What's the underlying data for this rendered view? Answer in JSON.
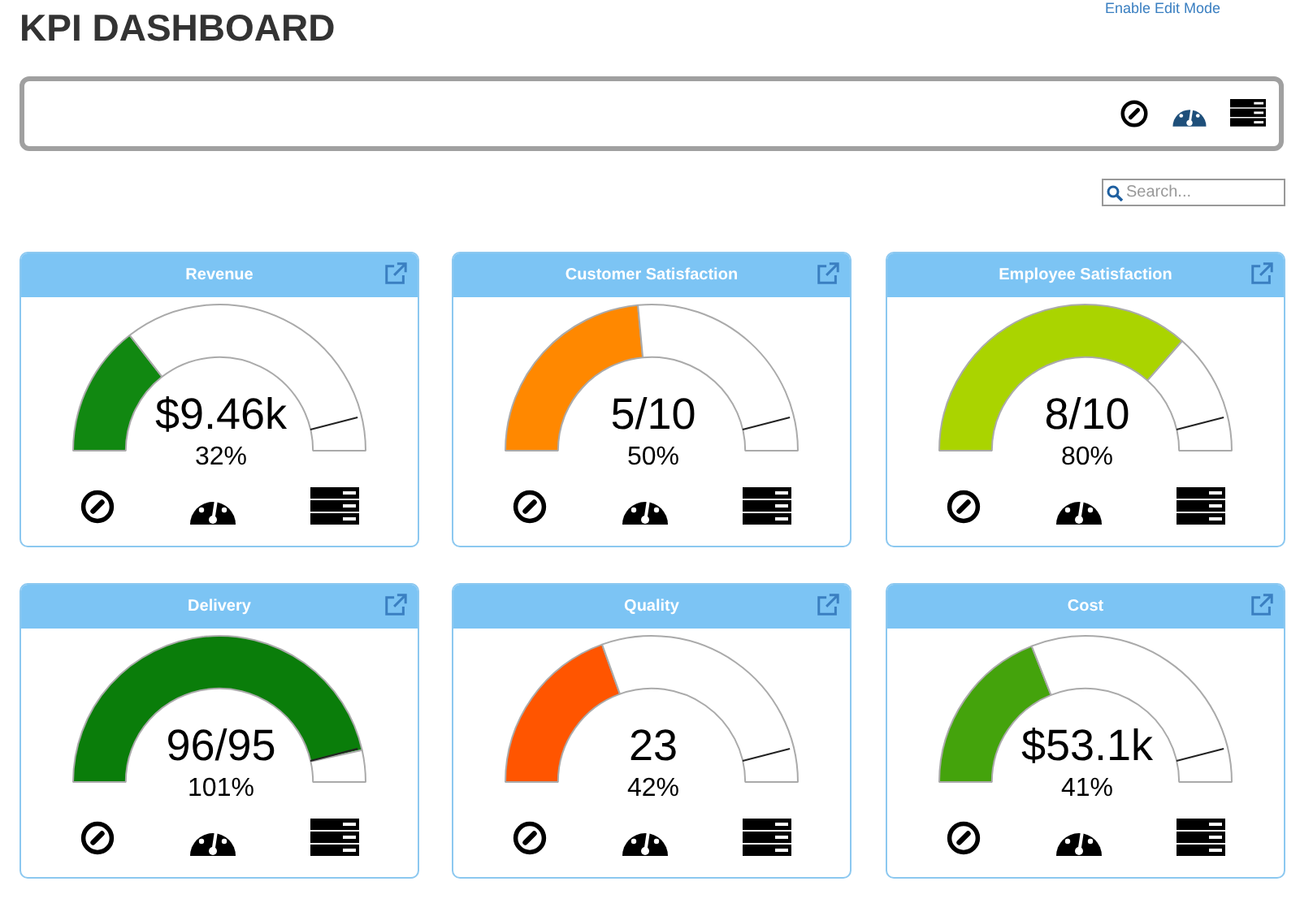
{
  "chart_data": [
    {
      "type": "other",
      "title": "KPI DASHBOARD",
      "annotations": [
        "Enable Edit Mode",
        "Search..."
      ]
    },
    {
      "type": "donut",
      "title": "Revenue",
      "categories": [
        null,
        null
      ],
      "values": [
        29,
        71
      ],
      "colors": [
        "#118811",
        "#ffffff"
      ],
      "annotations": [
        "$9.46k",
        "32%"
      ]
    },
    {
      "type": "donut",
      "title": "Customer Satisfaction",
      "categories": [
        null,
        null
      ],
      "values": [
        47,
        53
      ],
      "colors": [
        "#ff8800",
        "#ffffff"
      ],
      "annotations": [
        "5/10",
        "50%"
      ]
    },
    {
      "type": "donut",
      "title": "Employee Satisfaction",
      "categories": [
        null,
        null
      ],
      "values": [
        73,
        27
      ],
      "colors": [
        "#aad400",
        "#ffffff"
      ],
      "annotations": [
        "8/10",
        "80%"
      ]
    },
    {
      "type": "donut",
      "title": "Delivery",
      "categories": [
        null,
        null
      ],
      "values": [
        93,
        7
      ],
      "colors": [
        "#0a7d0a",
        "#ffffff"
      ],
      "annotations": [
        "96/95",
        "101%"
      ]
    },
    {
      "type": "donut",
      "title": "Quality",
      "categories": [
        null,
        null
      ],
      "values": [
        39,
        61
      ],
      "colors": [
        "#ff5500",
        "#ffffff"
      ],
      "annotations": [
        "23",
        "42%"
      ]
    },
    {
      "type": "donut",
      "title": "Cost",
      "categories": [
        null,
        null
      ],
      "values": [
        38,
        62
      ],
      "colors": [
        "#44a30c",
        "#ffffff"
      ],
      "annotations": [
        "$53.1k",
        "41%"
      ]
    }
  ]
}
